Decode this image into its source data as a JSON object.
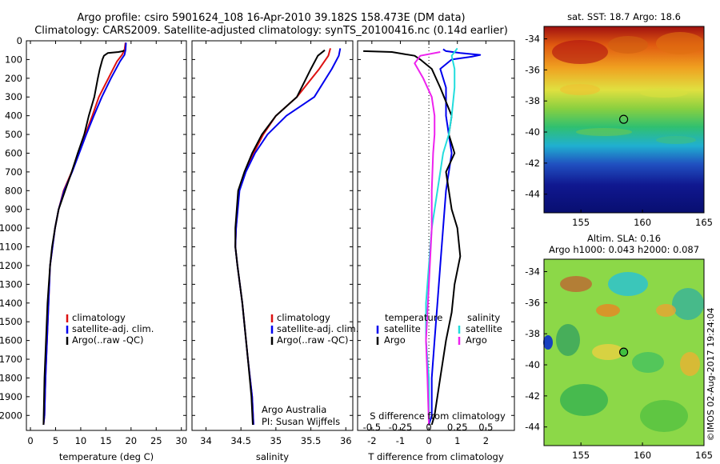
{
  "header": {
    "line1": "Argo profile: csiro 5901624_108 16-Apr-2010 39.182S 158.473E (DM data)",
    "line2": "Climatology: CARS2009. Satellite-adjusted climatology: synTS_20100416.nc (0.14d earlier)"
  },
  "colors": {
    "climatology": "#dd1111",
    "satellite": "#0000ee",
    "argo": "#000000",
    "salinity_satellite": "#22dddd",
    "salinity_argo": "#ee22ee"
  },
  "chart_data": [
    {
      "type": "line",
      "id": "temperature",
      "xlabel": "temperature (deg C)",
      "xlim": [
        -0.8,
        31
      ],
      "xticks": [
        0,
        5,
        10,
        15,
        20,
        25,
        30
      ],
      "ylim": [
        0,
        2080
      ],
      "yticks": [
        0,
        100,
        200,
        300,
        400,
        500,
        600,
        700,
        800,
        900,
        1000,
        1100,
        1200,
        1300,
        1400,
        1500,
        1600,
        1700,
        1800,
        1900,
        2000
      ],
      "legend": [
        "climatology",
        "satellite-adj. clim.",
        "Argo(..raw -QC)"
      ],
      "series": [
        {
          "name": "climatology",
          "color": "climatology",
          "x": [
            18.9,
            18.7,
            18.2,
            17.2,
            15.5,
            13.6,
            12.3,
            10.9,
            9.6,
            8.2,
            6.6,
            5.6,
            4.9,
            4.4,
            3.9,
            3.6,
            3.3,
            3.0,
            2.8,
            2.6
          ],
          "y": [
            10,
            50,
            75,
            110,
            200,
            300,
            400,
            500,
            600,
            700,
            800,
            900,
            1000,
            1100,
            1200,
            1400,
            1600,
            1800,
            2000,
            2050
          ]
        },
        {
          "name": "satellite-adj. clim.",
          "color": "satellite",
          "x": [
            19.0,
            18.9,
            18.7,
            17.8,
            16.0,
            14.2,
            12.6,
            11.1,
            9.7,
            8.3,
            6.7,
            5.6,
            4.9,
            4.4,
            3.9,
            3.6,
            3.3,
            3.0,
            2.8,
            2.6
          ],
          "y": [
            10,
            50,
            75,
            110,
            200,
            300,
            400,
            500,
            600,
            700,
            800,
            900,
            1000,
            1100,
            1200,
            1400,
            1600,
            1800,
            2000,
            2050
          ]
        },
        {
          "name": "Argo(..raw -QC)",
          "color": "argo",
          "x": [
            18.6,
            18.4,
            17.5,
            15.4,
            14.6,
            14.3,
            13.8,
            13.4,
            12.7,
            11.6,
            10.7,
            9.4,
            8.2,
            6.9,
            5.6,
            4.9,
            4.3,
            3.9,
            3.4,
            3.1,
            2.8,
            2.6
          ],
          "y": [
            50,
            55,
            60,
            65,
            80,
            100,
            150,
            200,
            300,
            400,
            500,
            600,
            700,
            800,
            900,
            1000,
            1100,
            1200,
            1400,
            1600,
            1800,
            2050
          ]
        }
      ]
    },
    {
      "type": "line",
      "id": "salinity",
      "xlabel": "salinity",
      "xlim": [
        33.8,
        36.1
      ],
      "xticks": [
        34,
        34.5,
        35,
        35.5,
        36
      ],
      "ylim": [
        0,
        2080
      ],
      "legend": [
        "climatology",
        "satellite-adj. clim.",
        "Argo(..raw -QC)"
      ],
      "annotation": [
        "Argo Australia",
        "PI: Susan Wijffels"
      ],
      "series": [
        {
          "name": "climatology",
          "color": "climatology",
          "x": [
            35.78,
            35.75,
            35.62,
            35.3,
            35.0,
            34.82,
            34.68,
            34.56,
            34.47,
            34.43,
            34.42,
            34.45,
            34.52,
            34.6,
            34.66,
            34.68
          ],
          "y": [
            40,
            80,
            150,
            300,
            400,
            500,
            600,
            700,
            800,
            1000,
            1100,
            1200,
            1400,
            1700,
            1900,
            2050
          ]
        },
        {
          "name": "satellite-adj. clim.",
          "color": "satellite",
          "x": [
            35.92,
            35.9,
            35.8,
            35.55,
            35.15,
            34.88,
            34.7,
            34.57,
            34.48,
            34.43,
            34.42,
            34.45,
            34.52,
            34.6,
            34.66,
            34.68
          ],
          "y": [
            40,
            80,
            150,
            300,
            400,
            500,
            600,
            700,
            800,
            1000,
            1100,
            1200,
            1400,
            1700,
            1900,
            2050
          ]
        },
        {
          "name": "Argo(..raw -QC)",
          "color": "argo",
          "x": [
            35.7,
            35.6,
            35.5,
            35.3,
            35.0,
            34.8,
            34.66,
            34.55,
            34.46,
            34.42,
            34.42,
            34.45,
            34.52,
            34.6,
            34.65,
            34.67
          ],
          "y": [
            50,
            80,
            150,
            300,
            400,
            500,
            600,
            700,
            800,
            1000,
            1100,
            1200,
            1400,
            1700,
            1900,
            2050
          ]
        }
      ]
    },
    {
      "type": "line",
      "id": "difference",
      "xlabel": "T difference from climatology",
      "xlabel_top": "S difference from climatology",
      "xlim": [
        -2.5,
        3.0
      ],
      "xticks": [
        -2,
        -1,
        0,
        1,
        2
      ],
      "s_ticks": [
        "-0.5",
        "-0.25",
        "0",
        "0.25",
        "0.5"
      ],
      "ylim": [
        0,
        2080
      ],
      "legend_temperature_title": "temperature",
      "legend_temperature": [
        "satellite",
        "Argo"
      ],
      "legend_salinity_title": "salinity",
      "legend_salinity": [
        "satellite",
        "Argo"
      ],
      "series": [
        {
          "name": "satellite",
          "color": "satellite",
          "x": [
            0.5,
            0.6,
            1.1,
            1.8,
            1.5,
            0.8,
            0.4,
            0.6,
            0.6,
            0.7,
            0.8,
            0.6,
            0.5,
            0.4,
            0.3,
            0.2,
            0.1,
            0.1,
            0.0
          ],
          "y": [
            45,
            55,
            65,
            75,
            85,
            100,
            150,
            250,
            400,
            500,
            600,
            800,
            1000,
            1200,
            1400,
            1600,
            1800,
            2000,
            2050
          ]
        },
        {
          "name": "Argo",
          "color": "argo",
          "x": [
            -2.3,
            -1.3,
            -0.9,
            -0.5,
            -0.3,
            0.1,
            0.4,
            0.8,
            0.7,
            0.9,
            0.6,
            0.8,
            1.0,
            1.1,
            0.9,
            0.8,
            0.6,
            0.4,
            0.2,
            0.1
          ],
          "y": [
            55,
            60,
            70,
            80,
            100,
            150,
            250,
            400,
            500,
            600,
            700,
            900,
            1000,
            1150,
            1300,
            1450,
            1600,
            1800,
            2000,
            2050
          ]
        },
        {
          "name": "satellite (salinity)",
          "color": "salinity_satellite",
          "x": [
            1.0,
            0.8,
            0.9,
            0.9,
            0.8,
            0.7,
            0.5,
            0.3,
            0.1,
            0.0,
            -0.1,
            -0.1,
            0.0,
            0.0
          ],
          "y": [
            40,
            80,
            150,
            250,
            400,
            500,
            600,
            800,
            1000,
            1200,
            1400,
            1600,
            1800,
            2050
          ]
        },
        {
          "name": "Argo (salinity)",
          "color": "salinity_argo",
          "x": [
            0.4,
            -0.3,
            -0.5,
            -0.2,
            0.1,
            0.2,
            0.2,
            0.15,
            0.1,
            0.1,
            0.0,
            -0.1,
            -0.05,
            0.0
          ],
          "y": [
            60,
            80,
            120,
            200,
            300,
            400,
            500,
            600,
            800,
            1000,
            1300,
            1600,
            1800,
            2050
          ]
        }
      ]
    },
    {
      "type": "heatmap",
      "id": "sst-map",
      "title": "sat. SST: 18.7 Argo: 18.6",
      "xticks": [
        155,
        160,
        165
      ],
      "yticks": [
        -34,
        -36,
        -38,
        -40,
        -42,
        -44
      ],
      "xlim": [
        152,
        165
      ],
      "ylim": [
        -45.2,
        -33.2
      ],
      "marker": {
        "lon": 158.473,
        "lat": -39.182
      }
    },
    {
      "type": "heatmap",
      "id": "sla-map",
      "title_lines": [
        "Altim. SLA: 0.16",
        "Argo h1000: 0.043 h2000: 0.087"
      ],
      "xticks": [
        155,
        160,
        165
      ],
      "yticks": [
        -34,
        -36,
        -38,
        -40,
        -42,
        -44
      ],
      "xlim": [
        152,
        165
      ],
      "ylim": [
        -45.2,
        -33.2
      ],
      "marker": {
        "lon": 158.473,
        "lat": -39.182
      }
    }
  ],
  "footer_stamp": "©IMOS 02-Aug-2017 19:24:04"
}
